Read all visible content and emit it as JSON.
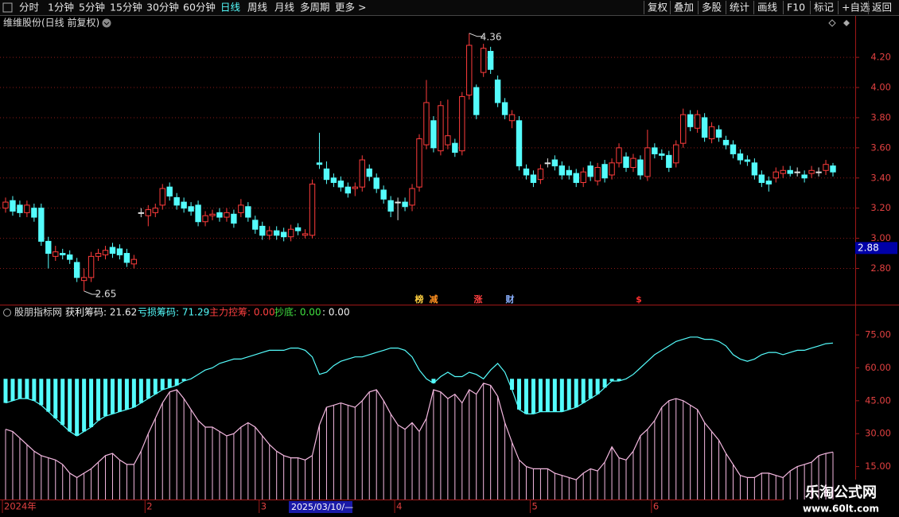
{
  "toolbar": {
    "tabs": [
      "分时",
      "1分钟",
      "5分钟",
      "15分钟",
      "30分钟",
      "60分钟",
      "日线",
      "周线",
      "月线",
      "多周期",
      "更多 >"
    ],
    "active_tab": 6,
    "buttons": [
      "复权",
      "叠加",
      "多股",
      "统计",
      "画线",
      "F10",
      "标记",
      "+自选",
      "返回"
    ]
  },
  "watermark": {
    "title": "乐淘公式网",
    "url": "www.60lt.com"
  },
  "chart_data": [
    {
      "type": "candlestick",
      "title": "维维股份(日线 前复权)",
      "up_color": "#ff3c3c",
      "down_color": "#54fcfc",
      "ylim": [
        2.56,
        4.38
      ],
      "grid": true,
      "yticks": [
        {
          "value": 2.8,
          "label": "2.80"
        },
        {
          "value": 3.0,
          "label": "3.00"
        },
        {
          "value": 3.2,
          "label": "3.20"
        },
        {
          "value": 3.4,
          "label": "3.40"
        },
        {
          "value": 3.6,
          "label": "3.60"
        },
        {
          "value": 3.8,
          "label": "3.80"
        },
        {
          "value": 4.0,
          "label": "4.00"
        },
        {
          "value": 4.2,
          "label": "4.20"
        }
      ],
      "cursor_price": 2.88,
      "events": [
        "榜",
        "减",
        "涨",
        "财",
        "$"
      ],
      "open": [
        3.2,
        3.25,
        3.22,
        3.17,
        3.2,
        3.2,
        2.98,
        2.88,
        2.9,
        2.89,
        2.84,
        2.72,
        2.74,
        2.88,
        2.89,
        2.94,
        2.93,
        2.9,
        2.83,
        3.17,
        3.15,
        3.17,
        3.22,
        3.34,
        3.27,
        3.24,
        3.21,
        3.22,
        3.11,
        3.15,
        3.17,
        3.14,
        3.16,
        3.17,
        3.21,
        3.12,
        3.08,
        3.02,
        3.05,
        3.04,
        3.01,
        3.07,
        3.02,
        3.02,
        3.5,
        3.46,
        3.4,
        3.38,
        3.34,
        3.33,
        3.34,
        3.46,
        3.4,
        3.32,
        3.25,
        3.24,
        3.24,
        3.22,
        3.34,
        3.62,
        3.78,
        3.58,
        3.62,
        3.63,
        3.58,
        3.95,
        4.0,
        4.1,
        4.24,
        4.05,
        3.9,
        3.78,
        3.78,
        3.46,
        3.42,
        3.39,
        3.5,
        3.52,
        3.48,
        3.45,
        3.43,
        3.37,
        3.48,
        3.38,
        3.49,
        3.42,
        3.5,
        3.54,
        3.47,
        3.52,
        3.41,
        3.6,
        3.56,
        3.55,
        3.5,
        3.63,
        3.82,
        3.73,
        3.8,
        3.66,
        3.72,
        3.65,
        3.62,
        3.56,
        3.52,
        3.5,
        3.42,
        3.38,
        3.4,
        3.43,
        3.45,
        3.44,
        3.42,
        3.43,
        3.44,
        3.45,
        3.48
      ],
      "high": [
        3.27,
        3.28,
        3.25,
        3.25,
        3.23,
        3.23,
        3.01,
        2.95,
        2.93,
        2.92,
        2.87,
        2.8,
        2.91,
        2.93,
        2.95,
        2.97,
        2.96,
        2.93,
        2.89,
        3.2,
        3.22,
        3.23,
        3.36,
        3.37,
        3.3,
        3.27,
        3.24,
        3.25,
        3.18,
        3.19,
        3.2,
        3.2,
        3.19,
        3.26,
        3.24,
        3.15,
        3.11,
        3.08,
        3.08,
        3.07,
        3.09,
        3.1,
        3.06,
        3.39,
        3.7,
        3.51,
        3.43,
        3.41,
        3.37,
        3.37,
        3.55,
        3.49,
        3.43,
        3.35,
        3.28,
        3.27,
        3.27,
        3.36,
        3.69,
        4.05,
        3.81,
        3.91,
        3.92,
        3.66,
        3.97,
        4.36,
        4.02,
        4.29,
        4.27,
        4.08,
        3.93,
        3.85,
        3.81,
        3.49,
        3.45,
        3.49,
        3.53,
        3.55,
        3.51,
        3.48,
        3.46,
        3.47,
        3.51,
        3.5,
        3.52,
        3.53,
        3.63,
        3.57,
        3.56,
        3.55,
        3.72,
        3.63,
        3.59,
        3.58,
        3.65,
        3.86,
        3.85,
        3.85,
        3.83,
        3.77,
        3.75,
        3.68,
        3.65,
        3.59,
        3.55,
        3.53,
        3.45,
        3.41,
        3.47,
        3.48,
        3.48,
        3.47,
        3.45,
        3.48,
        3.47,
        3.52,
        3.5
      ],
      "low": [
        3.17,
        3.15,
        3.14,
        3.14,
        3.11,
        2.95,
        2.8,
        2.85,
        2.86,
        2.83,
        2.71,
        2.65,
        2.71,
        2.85,
        2.86,
        2.87,
        2.86,
        2.81,
        2.8,
        3.14,
        3.08,
        3.14,
        3.19,
        3.25,
        3.19,
        3.17,
        3.15,
        3.08,
        3.08,
        3.12,
        3.11,
        3.11,
        3.07,
        3.14,
        3.11,
        3.03,
        2.99,
        2.99,
        2.99,
        2.98,
        2.98,
        3.02,
        3.0,
        3.0,
        3.46,
        3.36,
        3.34,
        3.31,
        3.27,
        3.28,
        3.31,
        3.38,
        3.3,
        3.23,
        3.14,
        3.12,
        3.18,
        3.18,
        3.31,
        3.59,
        3.57,
        3.55,
        3.59,
        3.54,
        3.55,
        3.92,
        3.79,
        4.07,
        4.09,
        3.87,
        3.79,
        3.73,
        3.45,
        3.39,
        3.34,
        3.36,
        3.47,
        3.45,
        3.39,
        3.39,
        3.34,
        3.34,
        3.38,
        3.35,
        3.37,
        3.39,
        3.47,
        3.44,
        3.44,
        3.39,
        3.38,
        3.53,
        3.52,
        3.44,
        3.47,
        3.6,
        3.71,
        3.7,
        3.64,
        3.63,
        3.64,
        3.59,
        3.53,
        3.49,
        3.48,
        3.39,
        3.34,
        3.31,
        3.37,
        3.4,
        3.41,
        3.41,
        3.37,
        3.4,
        3.41,
        3.42,
        3.41
      ],
      "close": [
        3.24,
        3.18,
        3.17,
        3.22,
        3.14,
        2.98,
        2.9,
        2.91,
        2.89,
        2.86,
        2.74,
        2.74,
        2.88,
        2.9,
        2.92,
        2.9,
        2.89,
        2.84,
        2.86,
        3.17,
        3.19,
        3.2,
        3.33,
        3.28,
        3.22,
        3.2,
        3.18,
        3.11,
        3.15,
        3.16,
        3.14,
        3.17,
        3.1,
        3.22,
        3.14,
        3.06,
        3.02,
        3.05,
        3.02,
        3.01,
        3.06,
        3.05,
        3.03,
        3.36,
        3.49,
        3.39,
        3.37,
        3.34,
        3.3,
        3.34,
        3.52,
        3.41,
        3.33,
        3.26,
        3.18,
        3.24,
        3.21,
        3.33,
        3.66,
        3.9,
        3.6,
        3.88,
        3.68,
        3.57,
        3.94,
        4.28,
        3.82,
        4.26,
        4.12,
        3.9,
        3.82,
        3.82,
        3.48,
        3.42,
        3.37,
        3.46,
        3.5,
        3.48,
        3.42,
        3.42,
        3.37,
        3.44,
        3.41,
        3.47,
        3.4,
        3.5,
        3.6,
        3.47,
        3.53,
        3.42,
        3.6,
        3.56,
        3.55,
        3.47,
        3.62,
        3.82,
        3.74,
        3.82,
        3.67,
        3.74,
        3.67,
        3.62,
        3.56,
        3.52,
        3.51,
        3.42,
        3.37,
        3.36,
        3.44,
        3.45,
        3.43,
        3.44,
        3.4,
        3.45,
        3.44,
        3.49,
        3.44
      ]
    },
    {
      "type": "indicator",
      "title": "股朋指标网",
      "header": [
        {
          "text": "获利筹码: 21.62",
          "color": "#f0f0f0"
        },
        {
          "text": "亏损筹码: 71.29",
          "color": "#54fcfc"
        },
        {
          "text": "主力控筹: 0.00",
          "color": "#ff4040"
        },
        {
          "text": "抄底: 0.00",
          "color": "#40e040"
        },
        {
          "text": ": 0.00",
          "color": "#f0f0f0"
        }
      ],
      "ylim": [
        0,
        83
      ],
      "yticks": [
        {
          "value": 15,
          "label": "15.00"
        },
        {
          "value": 30,
          "label": "30.00"
        },
        {
          "value": 45,
          "label": "45.00"
        },
        {
          "value": 60,
          "label": "60.00"
        },
        {
          "value": 75,
          "label": "75.00"
        }
      ],
      "loss_bar_top": 55,
      "cursor_date": "2025/03/10/—",
      "categories": [
        "2024年",
        null,
        null,
        null,
        null,
        null,
        null,
        null,
        null,
        null,
        null,
        null,
        null,
        null,
        null,
        null,
        null,
        null,
        null,
        null,
        "2",
        null,
        null,
        null,
        null,
        null,
        null,
        null,
        null,
        null,
        null,
        null,
        null,
        null,
        null,
        null,
        "3",
        null,
        null,
        null,
        null,
        null,
        null,
        null,
        null,
        null,
        null,
        null,
        null,
        null,
        null,
        null,
        null,
        null,
        null,
        "4",
        null,
        null,
        null,
        null,
        null,
        null,
        null,
        null,
        null,
        null,
        null,
        null,
        null,
        null,
        null,
        null,
        null,
        null,
        "5",
        null,
        null,
        null,
        null,
        null,
        null,
        null,
        null,
        null,
        null,
        null,
        null,
        null,
        null,
        null,
        null,
        "6",
        null,
        null,
        null,
        null,
        null,
        null,
        null,
        null,
        null,
        null,
        null,
        null,
        null,
        null,
        null,
        null,
        null,
        null,
        null,
        null,
        null,
        null,
        null,
        null,
        null
      ],
      "series": [
        {
          "name": "获利筹码",
          "color": "#f4b8e0",
          "values": [
            32,
            31,
            28,
            25,
            22,
            20,
            19,
            18,
            16,
            12,
            10,
            12,
            14,
            17,
            20,
            21,
            18,
            16,
            16,
            22,
            30,
            37,
            44,
            49,
            50,
            46,
            41,
            36,
            33,
            33,
            31,
            29,
            30,
            33,
            35,
            33,
            29,
            25,
            22,
            20,
            19,
            19,
            18,
            20,
            34,
            42,
            43,
            44,
            43,
            42,
            45,
            49,
            50,
            45,
            39,
            34,
            32,
            35,
            31,
            37,
            50,
            49,
            46,
            48,
            44,
            50,
            48,
            53,
            52,
            47,
            35,
            26,
            18,
            15,
            14,
            14,
            14,
            12,
            11,
            10,
            9,
            12,
            14,
            13,
            17,
            24,
            19,
            18,
            22,
            29,
            32,
            36,
            42,
            45,
            46,
            45,
            43,
            41,
            35,
            31,
            27,
            21,
            16,
            11,
            10,
            10,
            12,
            12,
            11,
            10,
            13,
            15,
            16,
            17,
            20,
            21,
            21.62
          ]
        },
        {
          "name": "亏损筹码",
          "color": "#54fcfc",
          "values": [
            44,
            45,
            46,
            46,
            45,
            43,
            40,
            37,
            34,
            31,
            29,
            31,
            33,
            36,
            38,
            39,
            40,
            41,
            42,
            44,
            46,
            48,
            50,
            51,
            52,
            54,
            55,
            57,
            59,
            60,
            62,
            63,
            64,
            64,
            65,
            66,
            67,
            68,
            68,
            68,
            69,
            69,
            68,
            65,
            57,
            58,
            61,
            63,
            64,
            65,
            65,
            66,
            67,
            68,
            69,
            69,
            68,
            65,
            59,
            55,
            53,
            56,
            58,
            56,
            56,
            58,
            57,
            55,
            59,
            62,
            58,
            50,
            41,
            39,
            39,
            40,
            40,
            40,
            40,
            41,
            42,
            44,
            46,
            48,
            51,
            54,
            54,
            55,
            57,
            60,
            63,
            66,
            68,
            70,
            72,
            73,
            74,
            74,
            73,
            73,
            72,
            70,
            66,
            64,
            63,
            64,
            66,
            67,
            67,
            66,
            67,
            68,
            68,
            69,
            70,
            71,
            71.29
          ]
        }
      ]
    }
  ]
}
